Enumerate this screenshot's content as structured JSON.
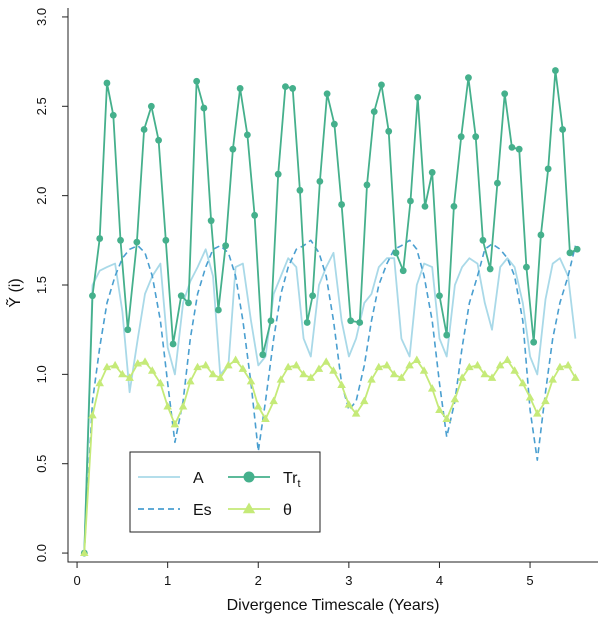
{
  "chart_data": {
    "type": "line",
    "title": "",
    "xlabel": "Divergence Timescale (Years)",
    "ylabel": "Ỹ (i)",
    "xlim": [
      -0.1,
      5.75
    ],
    "ylim": [
      -0.05,
      3.05
    ],
    "xticks": [
      0,
      1,
      2,
      3,
      4,
      5
    ],
    "yticks": [
      0.0,
      0.5,
      1.0,
      1.5,
      2.0,
      2.5,
      3.0
    ],
    "xtick_labels": [
      "0",
      "1",
      "2",
      "3",
      "4",
      "5"
    ],
    "ytick_labels": [
      "0.0",
      "0.5",
      "1.0",
      "1.5",
      "2.0",
      "2.5",
      "3.0"
    ],
    "legend": {
      "position": "bottom-left",
      "entries": [
        {
          "label": "A",
          "series": "A"
        },
        {
          "label": "Es",
          "series": "Es"
        },
        {
          "label": "Tr",
          "sub": "t",
          "series": "Tr"
        },
        {
          "label": "θ",
          "series": "theta"
        }
      ]
    },
    "series": [
      {
        "name": "A",
        "style": "solid",
        "color": "#a9d9e8",
        "x": [
          0.08,
          0.17,
          0.25,
          0.33,
          0.42,
          0.5,
          0.58,
          0.67,
          0.75,
          0.83,
          0.92,
          1.0,
          1.08,
          1.17,
          1.25,
          1.33,
          1.42,
          1.5,
          1.58,
          1.67,
          1.75,
          1.83,
          1.92,
          2.0,
          2.08,
          2.17,
          2.25,
          2.33,
          2.42,
          2.5,
          2.58,
          2.67,
          2.75,
          2.83,
          2.92,
          3.0,
          3.08,
          3.17,
          3.25,
          3.33,
          3.42,
          3.5,
          3.58,
          3.67,
          3.75,
          3.83,
          3.92,
          4.0,
          4.08,
          4.17,
          4.25,
          4.33,
          4.42,
          4.5,
          4.58,
          4.67,
          4.75,
          4.83,
          4.92,
          5.0,
          5.08,
          5.17,
          5.25,
          5.33,
          5.42,
          5.5
        ],
        "y": [
          0.0,
          1.5,
          1.58,
          1.6,
          1.62,
          1.35,
          0.9,
          1.2,
          1.45,
          1.55,
          1.62,
          1.15,
          1.0,
          1.4,
          1.52,
          1.6,
          1.7,
          1.55,
          1.0,
          1.05,
          1.6,
          1.62,
          1.3,
          1.05,
          1.1,
          1.45,
          1.55,
          1.65,
          1.6,
          1.2,
          1.1,
          1.5,
          1.6,
          1.68,
          1.3,
          1.1,
          1.2,
          1.4,
          1.45,
          1.6,
          1.65,
          1.65,
          1.2,
          1.1,
          1.5,
          1.62,
          1.6,
          1.2,
          1.1,
          1.5,
          1.6,
          1.65,
          1.62,
          1.4,
          1.25,
          1.6,
          1.65,
          1.6,
          1.4,
          1.1,
          1.0,
          1.42,
          1.62,
          1.65,
          1.55,
          1.2
        ]
      },
      {
        "name": "Es",
        "style": "dashed",
        "color": "#4a9fd0",
        "x": [
          0.08,
          0.17,
          0.25,
          0.33,
          0.42,
          0.5,
          0.58,
          0.67,
          0.75,
          0.83,
          0.92,
          1.0,
          1.08,
          1.17,
          1.25,
          1.33,
          1.42,
          1.5,
          1.58,
          1.67,
          1.75,
          1.83,
          1.92,
          2.0,
          2.08,
          2.17,
          2.25,
          2.33,
          2.42,
          2.5,
          2.58,
          2.67,
          2.75,
          2.83,
          2.92,
          3.0,
          3.08,
          3.17,
          3.25,
          3.33,
          3.42,
          3.5,
          3.58,
          3.67,
          3.75,
          3.83,
          3.92,
          4.0,
          4.08,
          4.17,
          4.25,
          4.33,
          4.42,
          4.5,
          4.58,
          4.67,
          4.75,
          4.83,
          4.92,
          5.0,
          5.08,
          5.17,
          5.25,
          5.33,
          5.42,
          5.5
        ],
        "y": [
          0.0,
          0.85,
          1.15,
          1.4,
          1.55,
          1.65,
          1.7,
          1.72,
          1.68,
          1.55,
          1.3,
          0.95,
          0.62,
          0.85,
          1.2,
          1.45,
          1.6,
          1.7,
          1.72,
          1.68,
          1.55,
          1.3,
          0.95,
          0.57,
          0.85,
          1.2,
          1.45,
          1.6,
          1.7,
          1.72,
          1.75,
          1.68,
          1.55,
          1.3,
          0.95,
          0.8,
          0.85,
          1.05,
          1.3,
          1.5,
          1.62,
          1.7,
          1.72,
          1.75,
          1.7,
          1.55,
          1.3,
          0.95,
          0.65,
          0.85,
          1.15,
          1.4,
          1.55,
          1.7,
          1.73,
          1.7,
          1.65,
          1.55,
          1.3,
          0.8,
          0.52,
          0.9,
          1.2,
          1.4,
          1.55,
          1.72
        ]
      },
      {
        "name": "Tr",
        "style": "solid",
        "color": "#45b08c",
        "marker": "circle",
        "x": [
          0.08,
          0.17,
          0.25,
          0.33,
          0.4,
          0.48,
          0.56,
          0.66,
          0.74,
          0.82,
          0.9,
          0.98,
          1.06,
          1.15,
          1.23,
          1.32,
          1.4,
          1.48,
          1.56,
          1.64,
          1.72,
          1.8,
          1.88,
          1.96,
          2.05,
          2.14,
          2.22,
          2.3,
          2.38,
          2.46,
          2.54,
          2.6,
          2.68,
          2.76,
          2.84,
          2.92,
          3.02,
          3.12,
          3.2,
          3.28,
          3.36,
          3.44,
          3.52,
          3.6,
          3.68,
          3.76,
          3.84,
          3.92,
          4.0,
          4.08,
          4.16,
          4.24,
          4.32,
          4.4,
          4.48,
          4.56,
          4.64,
          4.72,
          4.8,
          4.88,
          4.96,
          5.04,
          5.12,
          5.2,
          5.28,
          5.36,
          5.44,
          5.52
        ],
        "y": [
          0.0,
          1.44,
          1.76,
          2.63,
          2.45,
          1.75,
          1.25,
          1.74,
          2.37,
          2.5,
          2.31,
          1.75,
          1.17,
          1.44,
          1.4,
          2.64,
          2.49,
          1.86,
          1.36,
          1.72,
          2.26,
          2.6,
          2.34,
          1.89,
          1.11,
          1.3,
          2.12,
          2.61,
          2.6,
          2.03,
          1.29,
          1.44,
          2.08,
          2.57,
          2.4,
          1.95,
          1.3,
          1.29,
          2.06,
          2.47,
          2.62,
          2.36,
          1.68,
          1.58,
          1.97,
          2.55,
          1.94,
          2.13,
          1.44,
          1.22,
          1.94,
          2.33,
          2.66,
          2.33,
          1.75,
          1.59,
          2.07,
          2.57,
          2.27,
          2.26,
          1.6,
          1.18,
          1.78,
          2.15,
          2.7,
          2.37,
          1.68,
          1.7
        ]
      },
      {
        "name": "theta",
        "style": "solid",
        "color": "#c5ea78",
        "marker": "triangle",
        "x": [
          0.08,
          0.17,
          0.25,
          0.33,
          0.42,
          0.5,
          0.58,
          0.67,
          0.75,
          0.83,
          0.92,
          1.0,
          1.08,
          1.17,
          1.25,
          1.33,
          1.42,
          1.5,
          1.58,
          1.67,
          1.75,
          1.83,
          1.92,
          2.0,
          2.08,
          2.17,
          2.25,
          2.33,
          2.42,
          2.5,
          2.58,
          2.67,
          2.75,
          2.83,
          2.92,
          3.0,
          3.08,
          3.17,
          3.25,
          3.33,
          3.42,
          3.5,
          3.58,
          3.67,
          3.75,
          3.83,
          3.92,
          4.0,
          4.08,
          4.17,
          4.25,
          4.33,
          4.42,
          4.5,
          4.58,
          4.67,
          4.75,
          4.83,
          4.92,
          5.0,
          5.08,
          5.17,
          5.25,
          5.33,
          5.42,
          5.5
        ],
        "y": [
          0.0,
          0.77,
          0.95,
          1.04,
          1.05,
          1.0,
          0.98,
          1.06,
          1.07,
          1.02,
          0.95,
          0.82,
          0.72,
          0.82,
          0.96,
          1.04,
          1.05,
          1.0,
          0.98,
          1.05,
          1.08,
          1.03,
          0.96,
          0.82,
          0.75,
          0.85,
          0.97,
          1.04,
          1.05,
          1.0,
          0.98,
          1.03,
          1.07,
          1.02,
          0.94,
          0.83,
          0.78,
          0.85,
          0.97,
          1.04,
          1.05,
          1.0,
          0.98,
          1.05,
          1.08,
          1.02,
          0.92,
          0.8,
          0.75,
          0.86,
          0.98,
          1.04,
          1.05,
          1.0,
          0.98,
          1.05,
          1.08,
          1.02,
          0.95,
          0.87,
          0.78,
          0.85,
          0.97,
          1.04,
          1.05,
          0.98
        ]
      }
    ]
  }
}
